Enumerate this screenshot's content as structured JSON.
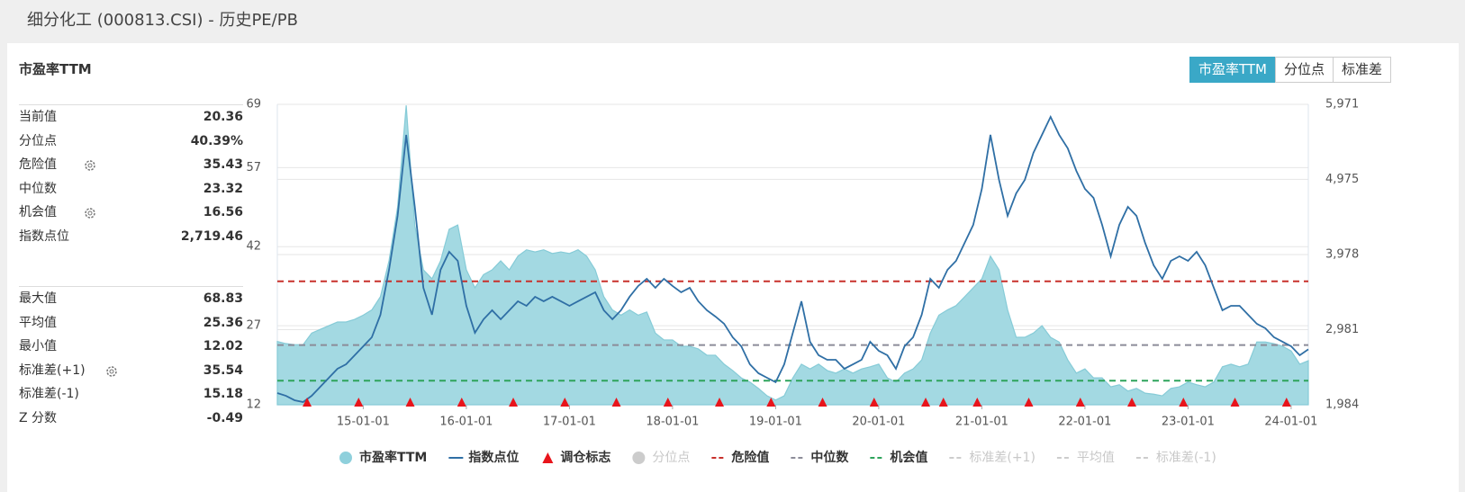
{
  "header": {
    "title": "细分化工 (000813.CSI) - 历史PE/PB"
  },
  "tabs": [
    "市盈率TTM",
    "分位点",
    "标准差"
  ],
  "stats": {
    "title": "市盈率TTM",
    "rows": [
      {
        "label": "当前值",
        "value": 20.36
      },
      {
        "label": "分位点",
        "value": "40.39%"
      },
      {
        "label": "危险值",
        "value": 35.43
      },
      {
        "label": "中位数",
        "value": 23.32
      },
      {
        "label": "机会值",
        "value": 16.56
      },
      {
        "label": "指数点位",
        "value": "2,719.46"
      },
      {
        "label": "最大值",
        "value": 68.83
      },
      {
        "label": "平均值",
        "value": 25.36
      },
      {
        "label": "最小值",
        "value": 12.02
      },
      {
        "label": "标准差(+1)",
        "value": 35.54
      },
      {
        "label": "标准差(-1)",
        "value": 15.18
      },
      {
        "label": "Z 分数",
        "value": -0.49
      }
    ]
  },
  "chart_data": {
    "type": "line",
    "grid": true,
    "xlim": [
      "14-03-01",
      "24-03-01"
    ],
    "xticks": [
      "15-01-01",
      "16-01-01",
      "17-01-01",
      "18-01-01",
      "19-01-01",
      "20-01-01",
      "21-01-01",
      "22-01-01",
      "23-01-01",
      "24-01-01"
    ],
    "ylim": [
      12,
      69
    ],
    "yticks": [
      12,
      27,
      42,
      57,
      69
    ],
    "y2lim": [
      1984,
      5971
    ],
    "y2ticks": [
      {
        "value": 1984,
        "label": "1,984"
      },
      {
        "value": 2981,
        "label": "2,981"
      },
      {
        "value": 3978,
        "label": "3,978"
      },
      {
        "value": 4975,
        "label": "4,975"
      },
      {
        "value": 5971,
        "label": "5,971"
      }
    ],
    "x": [
      "14-03-01",
      "14-04-01",
      "14-05-01",
      "14-06-01",
      "14-07-01",
      "14-08-01",
      "14-09-01",
      "14-10-01",
      "14-11-01",
      "14-12-01",
      "15-01-01",
      "15-02-01",
      "15-03-01",
      "15-04-01",
      "15-05-01",
      "15-06-01",
      "15-07-01",
      "15-08-01",
      "15-09-01",
      "15-10-01",
      "15-11-01",
      "15-12-01",
      "16-01-01",
      "16-02-01",
      "16-03-01",
      "16-04-01",
      "16-05-01",
      "16-06-01",
      "16-07-01",
      "16-08-01",
      "16-09-01",
      "16-10-01",
      "16-11-01",
      "16-12-01",
      "17-01-01",
      "17-02-01",
      "17-03-01",
      "17-04-01",
      "17-05-01",
      "17-06-01",
      "17-07-01",
      "17-08-01",
      "17-09-01",
      "17-10-01",
      "17-11-01",
      "17-12-01",
      "18-01-01",
      "18-02-01",
      "18-03-01",
      "18-04-01",
      "18-05-01",
      "18-06-01",
      "18-07-01",
      "18-08-01",
      "18-09-01",
      "18-10-01",
      "18-11-01",
      "18-12-01",
      "19-01-01",
      "19-02-01",
      "19-03-01",
      "19-04-01",
      "19-05-01",
      "19-06-01",
      "19-07-01",
      "19-08-01",
      "19-09-01",
      "19-10-01",
      "19-11-01",
      "19-12-01",
      "20-01-01",
      "20-02-01",
      "20-03-01",
      "20-04-01",
      "20-05-01",
      "20-06-01",
      "20-07-01",
      "20-08-01",
      "20-09-01",
      "20-10-01",
      "20-11-01",
      "20-12-01",
      "21-01-01",
      "21-02-01",
      "21-03-01",
      "21-04-01",
      "21-05-01",
      "21-06-01",
      "21-07-01",
      "21-08-01",
      "21-09-01",
      "21-10-01",
      "21-11-01",
      "21-12-01",
      "22-01-01",
      "22-02-01",
      "22-03-01",
      "22-04-01",
      "22-05-01",
      "22-06-01",
      "22-07-01",
      "22-08-01",
      "22-09-01",
      "22-10-01",
      "22-11-01",
      "22-12-01",
      "23-01-01",
      "23-02-01",
      "23-03-01",
      "23-04-01",
      "23-05-01",
      "23-06-01",
      "23-07-01",
      "23-08-01",
      "23-09-01",
      "23-10-01",
      "23-11-01",
      "23-12-01",
      "24-01-01",
      "24-02-01",
      "24-03-01"
    ],
    "series": [
      {
        "name": "市盈率TTM",
        "kind": "area",
        "color": "#a3d9e2",
        "visible": true,
        "values": [
          24,
          23.6,
          23.4,
          23.4,
          25.6,
          26.3,
          27,
          27.7,
          27.7,
          28.2,
          29,
          30,
          32.5,
          39.3,
          49.5,
          68.8,
          46,
          37.6,
          35.9,
          39.3,
          45.3,
          46.1,
          37.6,
          34.2,
          36.7,
          37.6,
          39.3,
          37.6,
          40.2,
          41.4,
          41,
          41.4,
          40.7,
          41,
          40.7,
          41.4,
          40.2,
          37.6,
          32.5,
          30,
          29,
          30,
          29,
          29.6,
          25.6,
          24.3,
          24.3,
          23.1,
          23.1,
          22.6,
          21.4,
          21.4,
          19.7,
          18.5,
          17.1,
          16.3,
          15.1,
          13.7,
          12.9,
          13.7,
          17.1,
          19.7,
          18.8,
          19.7,
          18.5,
          18,
          18.8,
          18,
          18.8,
          19.2,
          19.7,
          17.1,
          16.3,
          18,
          18.8,
          20.5,
          25.6,
          29,
          30,
          30.8,
          32.5,
          34.2,
          35.9,
          40.2,
          37.6,
          30,
          24.8,
          24.8,
          25.6,
          27,
          24.8,
          23.9,
          20.5,
          18,
          18.8,
          17.1,
          17.1,
          15.4,
          15.8,
          14.6,
          15.1,
          14.2,
          14,
          13.7,
          15.1,
          15.4,
          16.3,
          15.8,
          15.4,
          16.3,
          19.2,
          19.7,
          19.2,
          19.7,
          23.9,
          23.9,
          23.6,
          23.1,
          22.2,
          19.7,
          20.36
        ]
      },
      {
        "name": "指数点位",
        "kind": "line",
        "axis": "y2",
        "color": "#2f6fa5",
        "visible": true,
        "values": [
          2139,
          2103,
          2044,
          2020,
          2103,
          2223,
          2342,
          2462,
          2521,
          2641,
          2760,
          2880,
          3178,
          3775,
          4491,
          5566,
          4611,
          3536,
          3178,
          3775,
          4014,
          3894,
          3297,
          2939,
          3118,
          3238,
          3118,
          3238,
          3357,
          3297,
          3417,
          3357,
          3417,
          3357,
          3297,
          3357,
          3417,
          3477,
          3238,
          3118,
          3238,
          3417,
          3560,
          3656,
          3536,
          3656,
          3560,
          3477,
          3536,
          3357,
          3238,
          3154,
          3059,
          2880,
          2760,
          2521,
          2402,
          2342,
          2283,
          2521,
          2939,
          3357,
          2820,
          2641,
          2581,
          2581,
          2462,
          2521,
          2581,
          2820,
          2700,
          2641,
          2462,
          2760,
          2880,
          3178,
          3656,
          3536,
          3775,
          3894,
          4133,
          4372,
          4849,
          5566,
          4969,
          4491,
          4790,
          4969,
          5327,
          5566,
          5805,
          5566,
          5387,
          5088,
          4849,
          4730,
          4372,
          3954,
          4372,
          4611,
          4491,
          4133,
          3835,
          3656,
          3894,
          3954,
          3894,
          4014,
          3835,
          3536,
          3238,
          3297,
          3297,
          3178,
          3059,
          2999,
          2880,
          2820,
          2760,
          2641,
          2719.46
        ]
      },
      {
        "name": "调仓标志",
        "kind": "marker",
        "color": "#e8141b",
        "visible": true,
        "x": [
          "14-06-15",
          "14-12-15",
          "15-06-15",
          "15-12-15",
          "16-06-15",
          "16-12-15",
          "17-06-15",
          "17-12-15",
          "18-06-15",
          "18-12-15",
          "19-06-15",
          "19-12-15",
          "20-06-15",
          "20-08-17",
          "20-12-15",
          "21-06-15",
          "21-12-15",
          "22-06-15",
          "22-12-15",
          "23-06-15",
          "23-12-15"
        ]
      },
      {
        "name": "分位点",
        "kind": "dot",
        "color": "#cccccc",
        "visible": false
      },
      {
        "name": "危险值",
        "kind": "hline",
        "color": "#c8302b",
        "visible": true,
        "value": 35.43
      },
      {
        "name": "中位数",
        "kind": "hline",
        "color": "#8c8c99",
        "visible": true,
        "value": 23.32
      },
      {
        "name": "机会值",
        "kind": "hline",
        "color": "#2ea35b",
        "visible": true,
        "value": 16.56
      },
      {
        "name": "标准差(+1)",
        "kind": "hline",
        "color": "#cccccc",
        "visible": false
      },
      {
        "name": "平均值",
        "kind": "hline",
        "color": "#cccccc",
        "visible": false
      },
      {
        "name": "标准差(-1)",
        "kind": "hline",
        "color": "#cccccc",
        "visible": false
      }
    ]
  }
}
